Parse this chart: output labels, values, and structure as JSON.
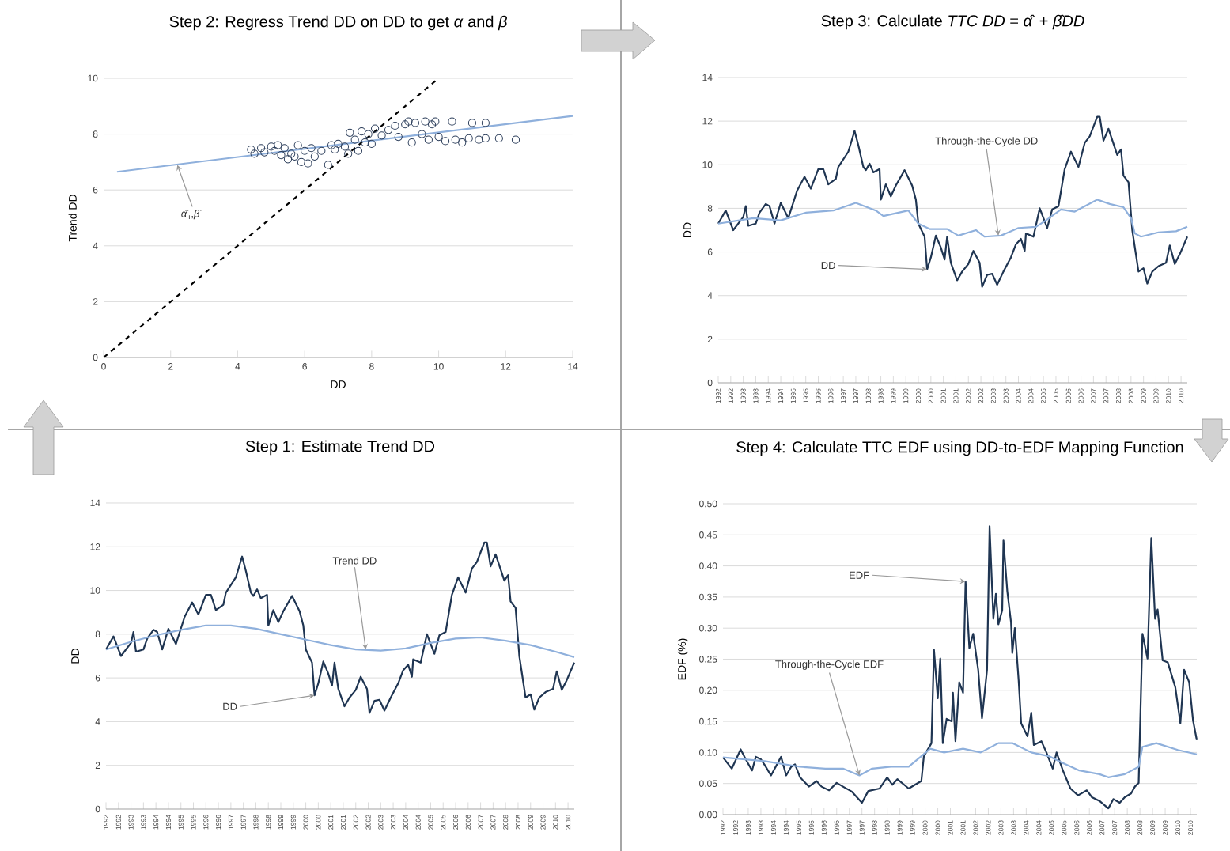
{
  "chart_data": [
    {
      "type": "scatter",
      "title": "Step 2: Regress Trend DD on DD to get *α* and *β*",
      "xlabel": "DD",
      "ylabel": "Trend DD",
      "xlim": [
        0,
        14
      ],
      "xticks": [
        0,
        2,
        4,
        6,
        8,
        10,
        12,
        14
      ],
      "ylim": [
        0,
        10
      ],
      "yticks": [
        0,
        2,
        4,
        6,
        8,
        10
      ],
      "grid": "y",
      "annotations": [
        {
          "text": "*α̂*$_{i}$,*β̂*$_{i}$",
          "x": 2.2,
          "y": 6.9
        }
      ],
      "series": [
        {
          "type": "scatter",
          "marker": "circle",
          "color": "#2b3d5a",
          "x": [
            4.4,
            4.5,
            4.7,
            4.8,
            5.0,
            5.1,
            5.2,
            5.3,
            5.4,
            5.5,
            5.6,
            5.7,
            5.8,
            5.9,
            6.0,
            6.1,
            6.2,
            6.3,
            6.5,
            6.7,
            6.8,
            6.9,
            7.0,
            7.2,
            7.3,
            7.35,
            7.5,
            7.6,
            7.7,
            7.8,
            7.9,
            8.0,
            8.1,
            8.3,
            8.5,
            8.7,
            8.8,
            9.0,
            9.1,
            9.2,
            9.3,
            9.5,
            9.6,
            9.7,
            9.8,
            9.9,
            10.0,
            10.2,
            10.4,
            10.5,
            10.7,
            10.9,
            11.0,
            11.2,
            11.4,
            11.4,
            11.8,
            12.3
          ],
          "values": [
            7.45,
            7.3,
            7.5,
            7.35,
            7.55,
            7.4,
            7.6,
            7.25,
            7.5,
            7.1,
            7.3,
            7.2,
            7.6,
            7.0,
            7.4,
            6.95,
            7.5,
            7.2,
            7.4,
            6.9,
            7.6,
            7.45,
            7.65,
            7.55,
            7.3,
            8.05,
            7.8,
            7.4,
            8.1,
            7.7,
            8.0,
            7.65,
            8.2,
            7.95,
            8.15,
            8.3,
            7.9,
            8.35,
            8.45,
            7.7,
            8.4,
            8.0,
            8.45,
            7.8,
            8.35,
            8.45,
            7.9,
            7.75,
            8.45,
            7.8,
            7.7,
            7.85,
            8.4,
            7.8,
            7.85,
            8.4,
            7.85,
            7.8
          ]
        },
        {
          "type": "line",
          "color": "#8fb0dc",
          "x": [
            0.4,
            14
          ],
          "values": [
            6.65,
            8.65
          ]
        },
        {
          "type": "line",
          "line_style": "dashed",
          "color": "#000000",
          "x": [
            0,
            10
          ],
          "values": [
            0,
            10
          ]
        }
      ]
    },
    {
      "type": "line",
      "title": "Step 3: Calculate *TTC DD* = *α̂* + *β̂DD*",
      "ylabel": "DD",
      "xlim": [
        1992,
        2010.75
      ],
      "ylim": [
        0,
        14
      ],
      "yticks": [
        0,
        2,
        4,
        6,
        8,
        10,
        12,
        14
      ],
      "grid": "y",
      "xticks": [
        {
          "value": 1992.0,
          "label": "1992"
        },
        {
          "value": 1992.5,
          "label": "1992"
        },
        {
          "value": 1993.0,
          "label": "1993"
        },
        {
          "value": 1993.5,
          "label": "1993"
        },
        {
          "value": 1994.0,
          "label": "1994"
        },
        {
          "value": 1994.5,
          "label": "1994"
        },
        {
          "value": 1995.0,
          "label": "1995"
        },
        {
          "value": 1995.5,
          "label": "1995"
        },
        {
          "value": 1996.0,
          "label": "1996"
        },
        {
          "value": 1996.5,
          "label": "1996"
        },
        {
          "value": 1997.0,
          "label": "1997"
        },
        {
          "value": 1997.5,
          "label": "1997"
        },
        {
          "value": 1998.0,
          "label": "1998"
        },
        {
          "value": 1998.5,
          "label": "1998"
        },
        {
          "value": 1999.0,
          "label": "1999"
        },
        {
          "value": 1999.5,
          "label": "1999"
        },
        {
          "value": 2000.0,
          "label": "2000"
        },
        {
          "value": 2000.5,
          "label": "2000"
        },
        {
          "value": 2001.0,
          "label": "2001"
        },
        {
          "value": 2001.5,
          "label": "2001"
        },
        {
          "value": 2002.0,
          "label": "2002"
        },
        {
          "value": 2002.5,
          "label": "2002"
        },
        {
          "value": 2003.0,
          "label": "2003"
        },
        {
          "value": 2003.5,
          "label": "2003"
        },
        {
          "value": 2004.0,
          "label": "2004"
        },
        {
          "value": 2004.5,
          "label": "2004"
        },
        {
          "value": 2005.0,
          "label": "2005"
        },
        {
          "value": 2005.5,
          "label": "2005"
        },
        {
          "value": 2006.0,
          "label": "2006"
        },
        {
          "value": 2006.5,
          "label": "2006"
        },
        {
          "value": 2007.0,
          "label": "2007"
        },
        {
          "value": 2007.5,
          "label": "2007"
        },
        {
          "value": 2008.0,
          "label": "2008"
        },
        {
          "value": 2008.5,
          "label": "2008"
        },
        {
          "value": 2009.0,
          "label": "2009"
        },
        {
          "value": 2009.5,
          "label": "2009"
        },
        {
          "value": 2010.0,
          "label": "2010"
        },
        {
          "value": 2010.5,
          "label": "2010"
        }
      ],
      "annotations": [
        {
          "text": "Through-the-Cycle DD",
          "x": 2003.2,
          "y": 6.75
        },
        {
          "text": "DD",
          "x": 2000.35,
          "y": 5.2
        }
      ],
      "series": [
        {
          "color": "#1f3552",
          "x": [
            1992.0,
            1992.3,
            1992.6,
            1993.0,
            1993.1,
            1993.2,
            1993.5,
            1993.65,
            1993.9,
            1994.05,
            1994.25,
            1994.5,
            1994.8,
            1995.15,
            1995.45,
            1995.7,
            1996.0,
            1996.2,
            1996.4,
            1996.7,
            1996.8,
            1997.2,
            1997.45,
            1997.6,
            1997.8,
            1997.9,
            1998.05,
            1998.2,
            1998.45,
            1998.5,
            1998.7,
            1998.9,
            1999.1,
            1999.45,
            1999.75,
            1999.9,
            2000.0,
            2000.25,
            2000.35,
            2000.5,
            2000.7,
            2000.9,
            2001.05,
            2001.15,
            2001.3,
            2001.55,
            2001.75,
            2002.0,
            2002.2,
            2002.45,
            2002.55,
            2002.75,
            2002.95,
            2003.15,
            2003.4,
            2003.7,
            2003.9,
            2004.1,
            2004.25,
            2004.3,
            2004.6,
            2004.85,
            2005.15,
            2005.35,
            2005.6,
            2005.85,
            2006.1,
            2006.4,
            2006.65,
            2006.85,
            2007.15,
            2007.25,
            2007.4,
            2007.6,
            2007.95,
            2008.1,
            2008.2,
            2008.4,
            2008.55,
            2008.8,
            2009.0,
            2009.15,
            2009.35,
            2009.6,
            2009.9,
            2010.05,
            2010.25,
            2010.45,
            2010.75
          ],
          "values": [
            7.3,
            7.9,
            7.0,
            7.6,
            8.1,
            7.2,
            7.3,
            7.8,
            8.2,
            8.1,
            7.3,
            8.25,
            7.55,
            8.8,
            9.45,
            8.9,
            9.8,
            9.8,
            9.1,
            9.35,
            9.9,
            10.6,
            11.55,
            10.9,
            9.9,
            9.75,
            10.05,
            9.65,
            9.8,
            8.4,
            9.1,
            8.55,
            9.05,
            9.75,
            9.05,
            8.4,
            7.3,
            6.7,
            5.2,
            5.75,
            6.75,
            6.2,
            5.65,
            6.7,
            5.5,
            4.7,
            5.1,
            5.45,
            6.05,
            5.5,
            4.4,
            4.95,
            5.0,
            4.5,
            5.1,
            5.75,
            6.35,
            6.6,
            6.05,
            6.85,
            6.7,
            8.0,
            7.1,
            7.95,
            8.1,
            9.8,
            10.6,
            9.9,
            11.0,
            11.3,
            12.2,
            12.2,
            11.1,
            11.65,
            10.45,
            10.7,
            9.5,
            9.2,
            7.0,
            5.1,
            5.25,
            4.55,
            5.1,
            5.35,
            5.5,
            6.3,
            5.45,
            5.9,
            6.7
          ]
        },
        {
          "color": "#8fb0dc",
          "x": [
            1992,
            1993.4,
            1994.5,
            1995.5,
            1996.6,
            1997.5,
            1998.3,
            1998.6,
            1999.6,
            2000.0,
            2000.45,
            2001.15,
            2001.6,
            2002.3,
            2002.65,
            2003.3,
            2004.0,
            2004.7,
            2005.1,
            2005.7,
            2006.25,
            2007.15,
            2007.65,
            2008.2,
            2008.5,
            2008.65,
            2008.9,
            2009.6,
            2010.3,
            2010.75
          ],
          "values": [
            7.3,
            7.55,
            7.45,
            7.8,
            7.9,
            8.25,
            7.9,
            7.65,
            7.9,
            7.3,
            7.05,
            7.05,
            6.75,
            7.0,
            6.7,
            6.75,
            7.1,
            7.15,
            7.45,
            7.95,
            7.85,
            8.4,
            8.2,
            8.05,
            7.55,
            6.85,
            6.7,
            6.9,
            6.95,
            7.15
          ]
        }
      ]
    },
    {
      "type": "line",
      "title": "Step 1: Estimate Trend DD",
      "ylabel": "DD",
      "xlim": [
        1992,
        2010.75
      ],
      "ylim": [
        0,
        14
      ],
      "yticks": [
        0,
        2,
        4,
        6,
        8,
        10,
        12,
        14
      ],
      "grid": "y",
      "xticks": [
        {
          "value": 1992.0,
          "label": "1992"
        },
        {
          "value": 1992.5,
          "label": "1992"
        },
        {
          "value": 1993.0,
          "label": "1993"
        },
        {
          "value": 1993.5,
          "label": "1993"
        },
        {
          "value": 1994.0,
          "label": "1994"
        },
        {
          "value": 1994.5,
          "label": "1994"
        },
        {
          "value": 1995.0,
          "label": "1995"
        },
        {
          "value": 1995.5,
          "label": "1995"
        },
        {
          "value": 1996.0,
          "label": "1996"
        },
        {
          "value": 1996.5,
          "label": "1996"
        },
        {
          "value": 1997.0,
          "label": "1997"
        },
        {
          "value": 1997.5,
          "label": "1997"
        },
        {
          "value": 1998.0,
          "label": "1998"
        },
        {
          "value": 1998.5,
          "label": "1998"
        },
        {
          "value": 1999.0,
          "label": "1999"
        },
        {
          "value": 1999.5,
          "label": "1999"
        },
        {
          "value": 2000.0,
          "label": "2000"
        },
        {
          "value": 2000.5,
          "label": "2000"
        },
        {
          "value": 2001.0,
          "label": "2001"
        },
        {
          "value": 2001.5,
          "label": "2001"
        },
        {
          "value": 2002.0,
          "label": "2002"
        },
        {
          "value": 2002.5,
          "label": "2002"
        },
        {
          "value": 2003.0,
          "label": "2003"
        },
        {
          "value": 2003.5,
          "label": "2003"
        },
        {
          "value": 2004.0,
          "label": "2004"
        },
        {
          "value": 2004.5,
          "label": "2004"
        },
        {
          "value": 2005.0,
          "label": "2005"
        },
        {
          "value": 2005.5,
          "label": "2005"
        },
        {
          "value": 2006.0,
          "label": "2006"
        },
        {
          "value": 2006.5,
          "label": "2006"
        },
        {
          "value": 2007.0,
          "label": "2007"
        },
        {
          "value": 2007.5,
          "label": "2007"
        },
        {
          "value": 2008.0,
          "label": "2008"
        },
        {
          "value": 2008.5,
          "label": "2008"
        },
        {
          "value": 2009.0,
          "label": "2009"
        },
        {
          "value": 2009.5,
          "label": "2009"
        },
        {
          "value": 2010.0,
          "label": "2010"
        },
        {
          "value": 2010.5,
          "label": "2010"
        }
      ],
      "annotations": [
        {
          "text": "Trend DD",
          "x": 2002.4,
          "y": 7.3
        },
        {
          "text": "DD",
          "x": 2000.35,
          "y": 5.2
        }
      ],
      "series": [
        {
          "color": "#1f3552",
          "x": [
            1992.0,
            1992.3,
            1992.6,
            1993.0,
            1993.1,
            1993.2,
            1993.5,
            1993.65,
            1993.9,
            1994.05,
            1994.25,
            1994.5,
            1994.8,
            1995.15,
            1995.45,
            1995.7,
            1996.0,
            1996.2,
            1996.4,
            1996.7,
            1996.8,
            1997.2,
            1997.45,
            1997.6,
            1997.8,
            1997.9,
            1998.05,
            1998.2,
            1998.45,
            1998.5,
            1998.7,
            1998.9,
            1999.1,
            1999.45,
            1999.75,
            1999.9,
            2000.0,
            2000.25,
            2000.35,
            2000.5,
            2000.7,
            2000.9,
            2001.05,
            2001.15,
            2001.3,
            2001.55,
            2001.75,
            2002.0,
            2002.2,
            2002.45,
            2002.55,
            2002.75,
            2002.95,
            2003.15,
            2003.4,
            2003.7,
            2003.9,
            2004.1,
            2004.25,
            2004.3,
            2004.6,
            2004.85,
            2005.15,
            2005.35,
            2005.6,
            2005.85,
            2006.1,
            2006.4,
            2006.65,
            2006.85,
            2007.15,
            2007.25,
            2007.4,
            2007.6,
            2007.95,
            2008.1,
            2008.2,
            2008.4,
            2008.55,
            2008.8,
            2009.0,
            2009.15,
            2009.35,
            2009.6,
            2009.9,
            2010.05,
            2010.25,
            2010.45,
            2010.75
          ],
          "values": [
            7.3,
            7.9,
            7.0,
            7.6,
            8.1,
            7.2,
            7.3,
            7.8,
            8.2,
            8.1,
            7.3,
            8.25,
            7.55,
            8.8,
            9.45,
            8.9,
            9.8,
            9.8,
            9.1,
            9.35,
            9.9,
            10.6,
            11.55,
            10.9,
            9.9,
            9.75,
            10.05,
            9.65,
            9.8,
            8.4,
            9.1,
            8.55,
            9.05,
            9.75,
            9.05,
            8.4,
            7.3,
            6.7,
            5.2,
            5.75,
            6.75,
            6.2,
            5.65,
            6.7,
            5.5,
            4.7,
            5.1,
            5.45,
            6.05,
            5.5,
            4.4,
            4.95,
            5.0,
            4.5,
            5.1,
            5.75,
            6.35,
            6.6,
            6.05,
            6.85,
            6.7,
            8.0,
            7.1,
            7.95,
            8.1,
            9.8,
            10.6,
            9.9,
            11.0,
            11.3,
            12.2,
            12.2,
            11.1,
            11.65,
            10.45,
            10.7,
            9.5,
            9.2,
            7.0,
            5.1,
            5.25,
            4.55,
            5.1,
            5.35,
            5.5,
            6.3,
            5.45,
            5.9,
            6.7
          ]
        },
        {
          "color": "#8fb0dc",
          "x": [
            1992,
            1993,
            1994,
            1995,
            1996,
            1997,
            1998,
            1999,
            2000,
            2001,
            2002,
            2003,
            2004,
            2005,
            2006,
            2007,
            2008,
            2009,
            2010,
            2010.75
          ],
          "values": [
            7.3,
            7.65,
            7.95,
            8.2,
            8.4,
            8.4,
            8.25,
            8.0,
            7.75,
            7.5,
            7.3,
            7.25,
            7.35,
            7.6,
            7.8,
            7.85,
            7.7,
            7.5,
            7.2,
            6.95
          ]
        }
      ]
    },
    {
      "type": "line",
      "title": "Step 4: Calculate TTC EDF using DD-to-EDF Mapping Function",
      "ylabel": "EDF (%)",
      "xlim": [
        1992,
        2010.75
      ],
      "ylim": [
        0,
        0.5
      ],
      "grid": "y",
      "yticks": [
        {
          "value": 0,
          "label": "0.00"
        },
        {
          "value": 0.05,
          "label": "0.05"
        },
        {
          "value": 0.1,
          "label": "0.10"
        },
        {
          "value": 0.15,
          "label": "0.15"
        },
        {
          "value": 0.2,
          "label": "0.20"
        },
        {
          "value": 0.25,
          "label": "0.25"
        },
        {
          "value": 0.3,
          "label": "0.30"
        },
        {
          "value": 0.35,
          "label": "0.35"
        },
        {
          "value": 0.4,
          "label": "0.40"
        },
        {
          "value": 0.45,
          "label": "0.45"
        },
        {
          "value": 0.5,
          "label": "0.50"
        }
      ],
      "xticks": [
        {
          "value": 1992.0,
          "label": "1992"
        },
        {
          "value": 1992.5,
          "label": "1992"
        },
        {
          "value": 1993.0,
          "label": "1993"
        },
        {
          "value": 1993.5,
          "label": "1993"
        },
        {
          "value": 1994.0,
          "label": "1994"
        },
        {
          "value": 1994.5,
          "label": "1994"
        },
        {
          "value": 1995.0,
          "label": "1995"
        },
        {
          "value": 1995.5,
          "label": "1995"
        },
        {
          "value": 1996.0,
          "label": "1996"
        },
        {
          "value": 1996.5,
          "label": "1996"
        },
        {
          "value": 1997.0,
          "label": "1997"
        },
        {
          "value": 1997.5,
          "label": "1997"
        },
        {
          "value": 1998.0,
          "label": "1998"
        },
        {
          "value": 1998.5,
          "label": "1998"
        },
        {
          "value": 1999.0,
          "label": "1999"
        },
        {
          "value": 1999.5,
          "label": "1999"
        },
        {
          "value": 2000.0,
          "label": "2000"
        },
        {
          "value": 2000.5,
          "label": "2000"
        },
        {
          "value": 2001.0,
          "label": "2001"
        },
        {
          "value": 2001.5,
          "label": "2001"
        },
        {
          "value": 2002.0,
          "label": "2002"
        },
        {
          "value": 2002.5,
          "label": "2002"
        },
        {
          "value": 2003.0,
          "label": "2003"
        },
        {
          "value": 2003.5,
          "label": "2003"
        },
        {
          "value": 2004.0,
          "label": "2004"
        },
        {
          "value": 2004.5,
          "label": "2004"
        },
        {
          "value": 2005.0,
          "label": "2005"
        },
        {
          "value": 2005.5,
          "label": "2005"
        },
        {
          "value": 2006.0,
          "label": "2006"
        },
        {
          "value": 2006.5,
          "label": "2006"
        },
        {
          "value": 2007.0,
          "label": "2007"
        },
        {
          "value": 2007.5,
          "label": "2007"
        },
        {
          "value": 2008.0,
          "label": "2008"
        },
        {
          "value": 2008.5,
          "label": "2008"
        },
        {
          "value": 2009.0,
          "label": "2009"
        },
        {
          "value": 2009.5,
          "label": "2009"
        },
        {
          "value": 2010.0,
          "label": "2010"
        },
        {
          "value": 2010.5,
          "label": "2010"
        }
      ],
      "annotations": [
        {
          "text": "EDF",
          "x": 2001.6,
          "y": 0.375
        },
        {
          "text": "Through-the-Cycle EDF",
          "x": 1997.4,
          "y": 0.063
        }
      ],
      "series": [
        {
          "color": "#1f3552",
          "x": [
            1992.0,
            1992.35,
            1992.7,
            1992.9,
            1993.15,
            1993.3,
            1993.5,
            1993.65,
            1993.9,
            1994.3,
            1994.5,
            1994.7,
            1994.85,
            1995.05,
            1995.4,
            1995.7,
            1995.9,
            1996.2,
            1996.5,
            1996.75,
            1997.1,
            1997.5,
            1997.75,
            1998.2,
            1998.5,
            1998.7,
            1998.9,
            1999.35,
            1999.85,
            1999.95,
            2000.25,
            2000.35,
            2000.5,
            2000.6,
            2000.7,
            2000.85,
            2001.05,
            2001.1,
            2001.2,
            2001.35,
            2001.5,
            2001.6,
            2001.75,
            2001.9,
            2002.1,
            2002.25,
            2002.45,
            2002.55,
            2002.7,
            2002.8,
            2002.9,
            2003.05,
            2003.1,
            2003.25,
            2003.4,
            2003.45,
            2003.55,
            2003.7,
            2003.8,
            2004.05,
            2004.2,
            2004.3,
            2004.6,
            2004.8,
            2005.05,
            2005.2,
            2005.45,
            2005.75,
            2006.05,
            2006.4,
            2006.6,
            2006.9,
            2007.25,
            2007.45,
            2007.7,
            2007.9,
            2008.15,
            2008.3,
            2008.45,
            2008.6,
            2008.8,
            2008.95,
            2009.1,
            2009.2,
            2009.4,
            2009.6,
            2009.9,
            2010.1,
            2010.25,
            2010.45,
            2010.6,
            2010.75
          ],
          "values": [
            0.092,
            0.074,
            0.105,
            0.089,
            0.071,
            0.093,
            0.089,
            0.08,
            0.063,
            0.093,
            0.063,
            0.077,
            0.081,
            0.06,
            0.045,
            0.054,
            0.045,
            0.039,
            0.051,
            0.045,
            0.037,
            0.019,
            0.038,
            0.042,
            0.06,
            0.048,
            0.057,
            0.042,
            0.054,
            0.094,
            0.115,
            0.265,
            0.187,
            0.251,
            0.115,
            0.154,
            0.15,
            0.196,
            0.118,
            0.213,
            0.196,
            0.375,
            0.268,
            0.291,
            0.233,
            0.155,
            0.233,
            0.464,
            0.315,
            0.355,
            0.306,
            0.329,
            0.441,
            0.36,
            0.309,
            0.26,
            0.3,
            0.216,
            0.147,
            0.126,
            0.164,
            0.112,
            0.118,
            0.1,
            0.074,
            0.1,
            0.071,
            0.042,
            0.031,
            0.039,
            0.028,
            0.022,
            0.01,
            0.025,
            0.019,
            0.028,
            0.034,
            0.045,
            0.051,
            0.291,
            0.251,
            0.445,
            0.315,
            0.33,
            0.248,
            0.245,
            0.205,
            0.147,
            0.233,
            0.213,
            0.152,
            0.12
          ]
        },
        {
          "color": "#8fb0dc",
          "x": [
            1992,
            1993.65,
            1995.05,
            1996.05,
            1996.75,
            1997.4,
            1997.9,
            1998.65,
            1999.35,
            1999.85,
            2000.2,
            2000.75,
            2001.5,
            2002.2,
            2002.9,
            2003.45,
            2004.2,
            2004.9,
            2005.45,
            2006.1,
            2006.9,
            2007.25,
            2007.9,
            2008.45,
            2008.6,
            2009.15,
            2010.0,
            2010.75
          ],
          "values": [
            0.092,
            0.086,
            0.077,
            0.074,
            0.074,
            0.063,
            0.074,
            0.077,
            0.077,
            0.094,
            0.106,
            0.1,
            0.106,
            0.1,
            0.115,
            0.115,
            0.1,
            0.094,
            0.083,
            0.071,
            0.065,
            0.06,
            0.065,
            0.077,
            0.109,
            0.115,
            0.104,
            0.097
          ]
        }
      ]
    }
  ]
}
